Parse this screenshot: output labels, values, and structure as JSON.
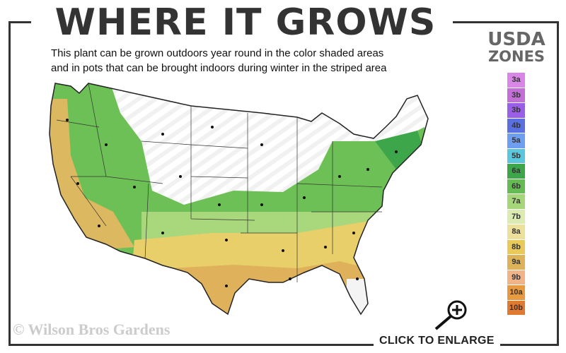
{
  "title": "WHERE IT GROWS",
  "subtitle": {
    "line1": "This plant can be grown outdoors year round in the color shaded areas",
    "line2": "and in pots that can be brought indoors during winter in the striped area"
  },
  "legend": {
    "title_line1": "USDA",
    "title_line2": "ZONES",
    "zones": [
      {
        "label": "3a",
        "color": "#d987e6"
      },
      {
        "label": "3b",
        "color": "#c26fd8"
      },
      {
        "label": "3b",
        "color": "#9a5ee8"
      },
      {
        "label": "4b",
        "color": "#5a6fe0"
      },
      {
        "label": "5a",
        "color": "#6f9ef0"
      },
      {
        "label": "5b",
        "color": "#5cc6dc"
      },
      {
        "label": "6a",
        "color": "#3ea64a"
      },
      {
        "label": "6b",
        "color": "#66bb55"
      },
      {
        "label": "7a",
        "color": "#a6d67a"
      },
      {
        "label": "7b",
        "color": "#dcebb2"
      },
      {
        "label": "8a",
        "color": "#ece09a"
      },
      {
        "label": "8b",
        "color": "#e8c95a"
      },
      {
        "label": "9a",
        "color": "#ddb35a"
      },
      {
        "label": "9b",
        "color": "#f0b488"
      },
      {
        "label": "10a",
        "color": "#e89a40"
      },
      {
        "label": "10b",
        "color": "#e07a30"
      }
    ]
  },
  "copyright": "© Wilson Bros Gardens",
  "enlarge_label": "CLICK TO ENLARGE",
  "icons": {
    "enlarge": "magnifier-plus-icon"
  }
}
